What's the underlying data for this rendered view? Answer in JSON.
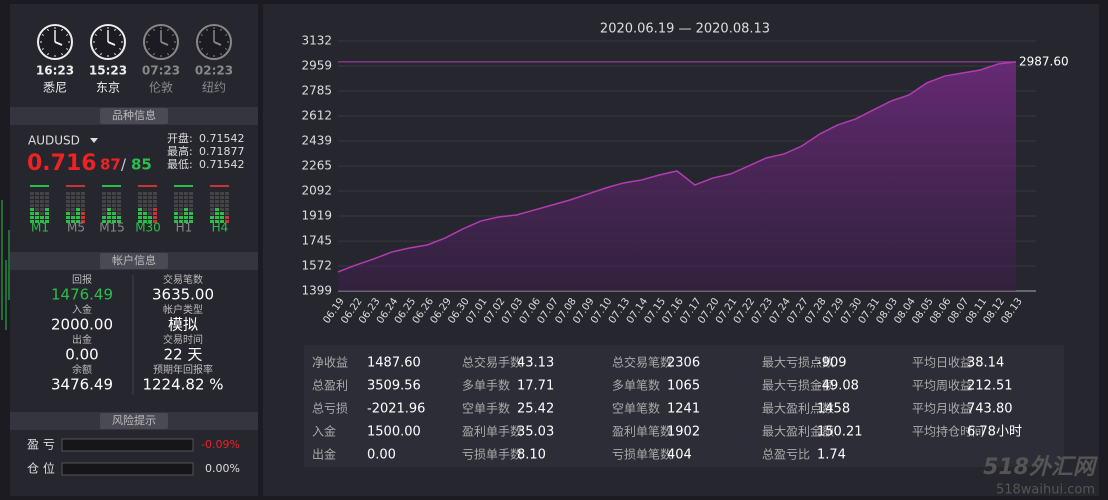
{
  "clocks": [
    {
      "time": "16:23",
      "city": "悉尼"
    },
    {
      "time": "15:23",
      "city": "东京"
    },
    {
      "time": "07:23",
      "city": "伦敦"
    },
    {
      "time": "02:23",
      "city": "纽约"
    }
  ],
  "sections": {
    "symbol": "品种信息",
    "account": "帐户信息",
    "risk": "风险提示"
  },
  "symbol": {
    "name": "AUDUSD",
    "price_main": "0.716",
    "price_small": "87",
    "price_sep": "/",
    "price_alt": "85",
    "quotes": [
      {
        "label": "开盘:",
        "value": "0.71542"
      },
      {
        "label": "最高:",
        "value": "0.71877"
      },
      {
        "label": "最低:",
        "value": "0.71542"
      }
    ],
    "timeframes": [
      "M1",
      "M5",
      "M15",
      "M30",
      "H1",
      "H4"
    ]
  },
  "account": [
    {
      "label": "回报",
      "value": "1476.49"
    },
    {
      "label": "交易笔数",
      "value": "3635.00"
    },
    {
      "label": "入金",
      "value": "2000.00"
    },
    {
      "label": "帐户类型",
      "value": "模拟"
    },
    {
      "label": "出金",
      "value": "0.00"
    },
    {
      "label": "交易时间",
      "value": "22 天"
    },
    {
      "label": "余额",
      "value": "3476.49"
    },
    {
      "label": "预期年回报率",
      "value": "1224.82 %"
    }
  ],
  "risk": [
    {
      "label": "盈 亏",
      "value": "-0.09%"
    },
    {
      "label": "仓 位",
      "value": "0.00%"
    }
  ],
  "chart_data": {
    "type": "area",
    "title": "2020.06.19 — 2020.08.13",
    "categories": [
      "06.19",
      "06.22",
      "06.23",
      "06.24",
      "06.25",
      "06.26",
      "06.29",
      "06.30",
      "07.01",
      "07.02",
      "07.03",
      "07.06",
      "07.07",
      "07.08",
      "07.09",
      "07.10",
      "07.13",
      "07.14",
      "07.15",
      "07.16",
      "07.17",
      "07.20",
      "07.21",
      "07.22",
      "07.23",
      "07.24",
      "07.27",
      "07.28",
      "07.29",
      "07.30",
      "07.31",
      "08.03",
      "08.04",
      "08.05",
      "08.06",
      "08.07",
      "08.11",
      "08.12",
      "08.13"
    ],
    "values": [
      1531,
      1579,
      1621,
      1669,
      1697,
      1718,
      1766,
      1829,
      1884,
      1912,
      1926,
      1960,
      1995,
      2030,
      2071,
      2113,
      2148,
      2168,
      2203,
      2231,
      2134,
      2182,
      2210,
      2265,
      2321,
      2349,
      2404,
      2487,
      2550,
      2591,
      2654,
      2716,
      2758,
      2841,
      2889,
      2910,
      2931,
      2973,
      2987.6
    ],
    "color": "#b23cb0",
    "ylim": [
      1399,
      3132
    ],
    "yticks": [
      1399,
      1572,
      1745,
      1919,
      2092,
      2265,
      2439,
      2612,
      2785,
      2959,
      3132
    ],
    "grid": true,
    "annotation": {
      "value": 2987.6,
      "label": "2987.60"
    }
  },
  "stats": [
    [
      {
        "label": "净收益",
        "value": "1487.60"
      },
      {
        "label": "总盈利",
        "value": "3509.56"
      },
      {
        "label": "总亏损",
        "value": "-2021.96"
      },
      {
        "label": "入金",
        "value": "1500.00"
      },
      {
        "label": "出金",
        "value": "0.00"
      }
    ],
    [
      {
        "label": "总交易手数",
        "value": "43.13"
      },
      {
        "label": "多单手数",
        "value": "17.71"
      },
      {
        "label": "空单手数",
        "value": "25.42"
      },
      {
        "label": "盈利单手数",
        "value": "35.03"
      },
      {
        "label": "亏损单手数",
        "value": "8.10"
      }
    ],
    [
      {
        "label": "总交易笔数",
        "value": "2306"
      },
      {
        "label": "多单笔数",
        "value": "1065"
      },
      {
        "label": "空单笔数",
        "value": "1241"
      },
      {
        "label": "盈利单笔数",
        "value": "1902"
      },
      {
        "label": "亏损单笔数",
        "value": "404"
      }
    ],
    [
      {
        "label": "最大亏损点数",
        "value": "-909"
      },
      {
        "label": "最大亏损金额",
        "value": "-49.08"
      },
      {
        "label": "最大盈利点数",
        "value": "1458"
      },
      {
        "label": "最大盈利金额",
        "value": "150.21"
      },
      {
        "label": "总盈亏比",
        "value": "1.74"
      }
    ],
    [
      {
        "label": "平均日收益",
        "value": "38.14"
      },
      {
        "label": "平均周收益",
        "value": "212.51"
      },
      {
        "label": "平均月收益",
        "value": "743.80"
      },
      {
        "label": "平均持仓时间",
        "value": "6.78小时"
      }
    ]
  ],
  "watermark": {
    "name": "518外汇网",
    "url": "518waihui.com"
  }
}
